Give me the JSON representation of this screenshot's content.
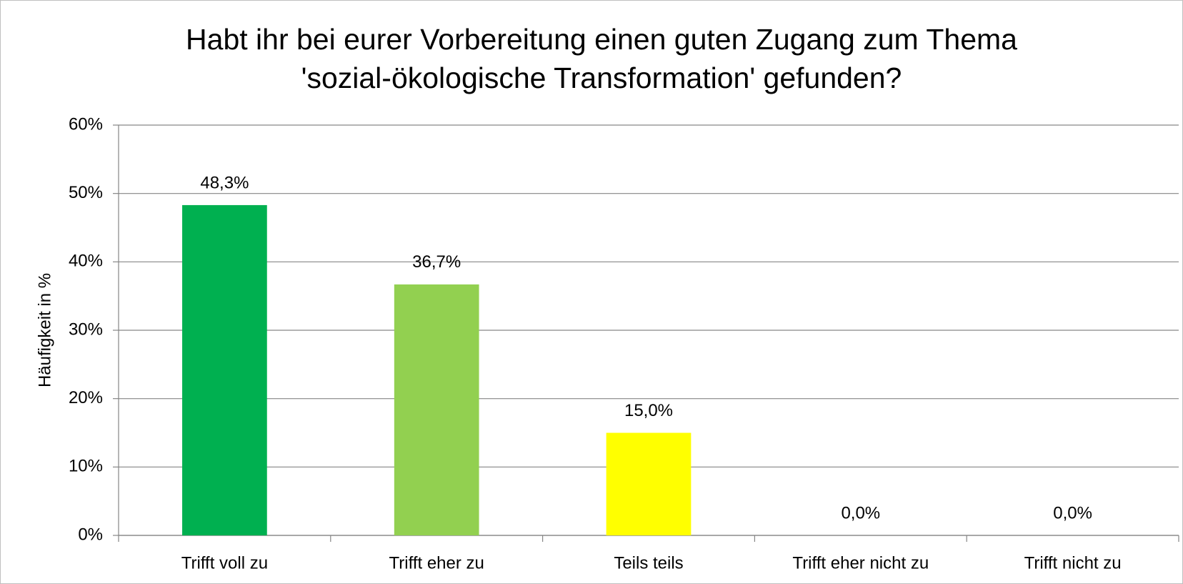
{
  "chart_data": {
    "type": "bar",
    "title": [
      "Habt ihr bei eurer Vorbereitung einen guten Zugang zum Thema",
      "'sozial-ökologische Transformation' gefunden?"
    ],
    "y_label": "Häufigkeit in %",
    "categories": [
      "Trifft voll zu",
      "Trifft eher zu",
      "Teils teils",
      "Trifft eher nicht zu",
      "Trifft nicht zu"
    ],
    "values": [
      48.3,
      36.7,
      15.0,
      0,
      0
    ],
    "value_labels": [
      "48,3%",
      "36,7%",
      "15,0%",
      "0,0%",
      "0,0%"
    ],
    "colors": [
      "#00b050",
      "#92d050",
      "#ffff00",
      "#ffc000",
      "#ff0000"
    ],
    "ylim": [
      0,
      60
    ],
    "yticks": [
      {
        "value": 0,
        "label": "0%"
      },
      {
        "value": 10,
        "label": "10%"
      },
      {
        "value": 20,
        "label": "20%"
      },
      {
        "value": 30,
        "label": "30%"
      },
      {
        "value": 40,
        "label": "40%"
      },
      {
        "value": 50,
        "label": "50%"
      },
      {
        "value": 60,
        "label": "60%"
      }
    ],
    "grid": true
  }
}
